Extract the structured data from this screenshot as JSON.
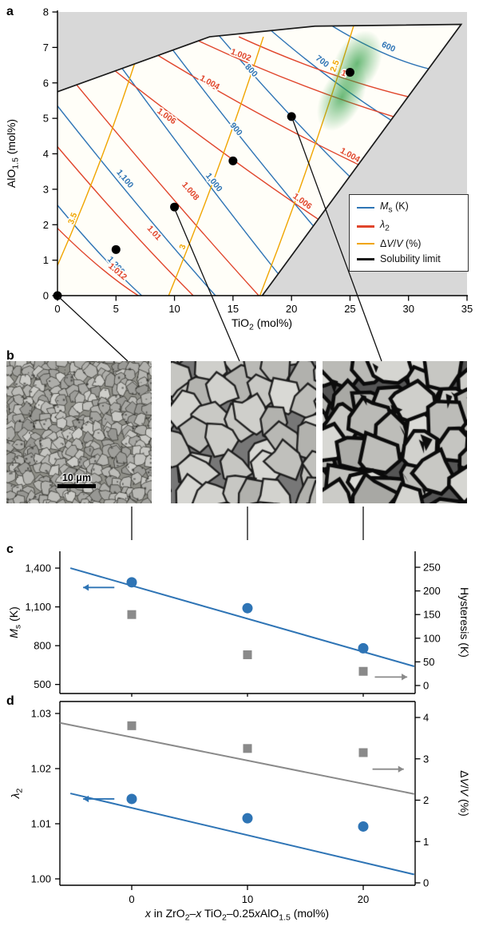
{
  "panels": {
    "a_label": "a",
    "b_label": "b",
    "c_label": "c",
    "d_label": "d"
  },
  "scalebar": {
    "label": "10 μm"
  },
  "colors": {
    "ms": "#2e74b5",
    "lambda2": "#e0452b",
    "dvv": "#f0a500",
    "solubility": "#1a1a1a",
    "gray_out": "#d8d8d8",
    "marker_gray": "#8a8a8a",
    "green": "#2f9e44",
    "region_bg": "#fffef8"
  },
  "sem_images": [
    {
      "name": "fine-grained microstructure"
    },
    {
      "name": "medium-grained microstructure"
    },
    {
      "name": "coarse-grained microstructure"
    }
  ],
  "chart_data": [
    {
      "id": "phase-contour-map",
      "type": "contour",
      "xlabel_runs": [
        {
          "t": "TiO"
        },
        {
          "t": "2",
          "sub": true
        },
        {
          "t": " (mol%)"
        }
      ],
      "ylabel_runs": [
        {
          "t": "AlO"
        },
        {
          "t": "1.5",
          "sub": true
        },
        {
          "t": " (mol%)"
        }
      ],
      "xlim": [
        0,
        35
      ],
      "ylim": [
        0,
        8
      ],
      "x_ticks": [
        0,
        5,
        10,
        15,
        20,
        25,
        30,
        35
      ],
      "y_ticks": [
        0,
        1,
        2,
        3,
        4,
        5,
        6,
        7,
        8
      ],
      "legend": [
        {
          "color": "#2e74b5",
          "runs": [
            {
              "t": "M",
              "italic": true
            },
            {
              "t": "s",
              "sub": true
            },
            {
              "t": " (K)"
            }
          ]
        },
        {
          "color": "#e0452b",
          "runs": [
            {
              "t": "λ",
              "italic": true
            },
            {
              "t": "2",
              "sub": true
            }
          ]
        },
        {
          "color": "#f0a500",
          "runs": [
            {
              "t": "Δ"
            },
            {
              "t": "V",
              "italic": true
            },
            {
              "t": "/"
            },
            {
              "t": "V",
              "italic": true
            },
            {
              "t": " (%)"
            }
          ]
        },
        {
          "color": "#1a1a1a",
          "runs": [
            {
              "t": "Solubility limit"
            }
          ]
        }
      ],
      "series_levels": {
        "ms": [
          "600",
          "700",
          "800",
          "900",
          "1,000",
          "1,100",
          "1,200"
        ],
        "lambda2": [
          "1",
          "1.002",
          "1.004",
          "1.006",
          "1.008",
          "1.01",
          "1.012"
        ],
        "dvv": [
          "2.5",
          "3",
          "3.5"
        ]
      },
      "contour_lines": [
        {
          "s": "ms",
          "v": "1,200",
          "from": [
            0,
            2.55
          ],
          "to": [
            7.2,
            0
          ],
          "labels": [
            [
              4.85,
              0.8,
              47
            ]
          ]
        },
        {
          "s": "ms",
          "v": "1,100",
          "from": [
            0,
            5.35
          ],
          "to": [
            13.5,
            0
          ],
          "labels": [
            [
              5.6,
              3.25,
              50
            ]
          ]
        },
        {
          "s": "ms",
          "v": "1,000",
          "from": [
            4.0,
            7.1
          ],
          "to": [
            18.9,
            0.6
          ],
          "labels": [
            [
              13.2,
              3.15,
              52
            ]
          ]
        },
        {
          "s": "ms",
          "v": "900",
          "from": [
            9.0,
            7.3
          ],
          "to": [
            21.9,
            1.95
          ],
          "labels": [
            [
              15.1,
              4.65,
              51
            ]
          ]
        },
        {
          "s": "ms",
          "v": "800",
          "from": [
            13.5,
            7.45
          ],
          "to": [
            25.0,
            3.35
          ],
          "labels": [
            [
              16.4,
              6.3,
              47
            ]
          ]
        },
        {
          "s": "ms",
          "v": "700",
          "from": [
            18.0,
            7.55
          ],
          "to": [
            28.5,
            4.95
          ],
          "labels": [
            [
              22.5,
              6.55,
              37
            ]
          ]
        },
        {
          "s": "ms",
          "v": "600",
          "from": [
            23.5,
            7.6
          ],
          "to": [
            31.7,
            6.4
          ],
          "labels": [
            [
              28.2,
              6.95,
              24
            ]
          ]
        },
        {
          "s": "lambda2",
          "v": "1.012",
          "from": [
            0,
            1.9
          ],
          "to": [
            6.9,
            0
          ],
          "labels": [
            [
              5.0,
              0.62,
              40
            ]
          ]
        },
        {
          "s": "lambda2",
          "v": "1.01",
          "from": [
            0,
            4.2
          ],
          "to": [
            11.6,
            0
          ],
          "labels": [
            [
              8.1,
              1.72,
              48
            ]
          ]
        },
        {
          "s": "lambda2",
          "v": "1.008",
          "from": [
            0,
            6.6
          ],
          "to": [
            17.2,
            0
          ],
          "labels": [
            [
              11.2,
              2.9,
              49
            ]
          ]
        },
        {
          "s": "lambda2",
          "v": "1.006",
          "from": [
            2.2,
            7.05
          ],
          "to": [
            22.3,
            2.15
          ],
          "labels": [
            [
              9.2,
              5.0,
              36
            ],
            [
              20.8,
              2.6,
              36
            ]
          ]
        },
        {
          "s": "lambda2",
          "v": "1.004",
          "from": [
            6.5,
            7.2
          ],
          "to": [
            25.7,
            3.7
          ],
          "labels": [
            [
              12.9,
              5.95,
              29
            ],
            [
              24.9,
              3.9,
              29
            ]
          ]
        },
        {
          "s": "lambda2",
          "v": "1.002",
          "from": [
            11.0,
            7.35
          ],
          "to": [
            28.7,
            5.05
          ],
          "labels": [
            [
              15.6,
              6.72,
              21
            ]
          ]
        },
        {
          "s": "lambda2",
          "v": "1",
          "from": [
            15.5,
            7.3
          ],
          "to": [
            29.97,
            5.61
          ],
          "labels": [
            [
              24.4,
              6.2,
              19
            ]
          ]
        },
        {
          "s": "dvv",
          "v": "3.5",
          "from": [
            0,
            0.85
          ],
          "to": [
            6.58,
            6.53
          ],
          "labels": [
            [
              1.5,
              2.15,
              -69
            ]
          ]
        },
        {
          "s": "dvv",
          "v": "3",
          "from": [
            9.5,
            0
          ],
          "to": [
            17.6,
            7.3
          ],
          "labels": [
            [
              10.9,
              1.35,
              -69
            ]
          ]
        },
        {
          "s": "dvv",
          "v": "2.5",
          "from": [
            17.3,
            0
          ],
          "to": [
            25.3,
            7.6
          ],
          "labels": [
            [
              23.9,
              6.45,
              -69
            ]
          ]
        }
      ],
      "solubility_polygon": [
        [
          0,
          0
        ],
        [
          0,
          5.75
        ],
        [
          13,
          7.3
        ],
        [
          22,
          7.6
        ],
        [
          34.5,
          7.65
        ],
        [
          17.5,
          0
        ]
      ],
      "solubility_line": [
        [
          0,
          5.75
        ],
        [
          13,
          7.3
        ],
        [
          22,
          7.6
        ],
        [
          34.5,
          7.65
        ],
        [
          17.5,
          0
        ]
      ],
      "composition_dots": [
        [
          0,
          0
        ],
        [
          5,
          1.3
        ],
        [
          10,
          2.5
        ],
        [
          15,
          3.8
        ],
        [
          20,
          5.05
        ],
        [
          25,
          6.3
        ]
      ],
      "highlight_center": [
        25,
        6.1
      ]
    },
    {
      "id": "ms-hysteresis",
      "type": "scatter",
      "x": [
        0,
        10,
        20
      ],
      "series": [
        {
          "name": "Ms (K)",
          "axis": "left",
          "color": "#2e74b5",
          "marker": "circle",
          "values": [
            1290,
            1090,
            780
          ]
        },
        {
          "name": "Hysteresis (K)",
          "axis": "right",
          "color": "#8a8a8a",
          "marker": "square",
          "values": [
            150,
            65,
            30
          ]
        }
      ],
      "trend": {
        "axis": "left",
        "color": "#2e74b5",
        "x": [
          -5.3,
          24.4
        ],
        "y": [
          1400,
          640
        ]
      },
      "left_axis": {
        "label_runs": [
          {
            "t": "M",
            "italic": true
          },
          {
            "t": "s",
            "sub": true
          },
          {
            "t": " (K)"
          }
        ],
        "ticks": [
          "500",
          "800",
          "1,100",
          "1,400"
        ],
        "tick_values": [
          500,
          800,
          1100,
          1400
        ],
        "lim": [
          430,
          1530
        ]
      },
      "right_axis": {
        "label_runs": [
          {
            "t": "Hysteresis (K)"
          }
        ],
        "ticks": [
          "0",
          "50",
          "100",
          "150",
          "200",
          "250"
        ],
        "tick_values": [
          0,
          50,
          100,
          150,
          200,
          250
        ],
        "lim": [
          -17,
          284
        ]
      },
      "arrows": [
        {
          "axis": "left",
          "color": "#2e74b5",
          "y": 1250,
          "x_from": -1.5,
          "x_to": -4.2,
          "dir": "left"
        },
        {
          "axis": "right",
          "color": "#8a8a8a",
          "y": 18,
          "x_from": 21.0,
          "x_to": 23.8,
          "dir": "right"
        }
      ]
    },
    {
      "id": "lambda2-volume-change",
      "type": "scatter",
      "x": [
        0,
        10,
        20
      ],
      "x_tick_labels": [
        "0",
        "10",
        "20"
      ],
      "xlabel_runs": [
        {
          "t": "x",
          "italic": true
        },
        {
          "t": " in ZrO"
        },
        {
          "t": "2",
          "sub": true
        },
        {
          "t": "–"
        },
        {
          "t": "x",
          "italic": true
        },
        {
          "t": " TiO"
        },
        {
          "t": "2",
          "sub": true
        },
        {
          "t": "–0.25"
        },
        {
          "t": "x",
          "italic": true
        },
        {
          "t": "AlO"
        },
        {
          "t": "1.5",
          "sub": true
        },
        {
          "t": " (mol%)"
        }
      ],
      "series": [
        {
          "name": "λ2",
          "axis": "left",
          "color": "#2e74b5",
          "marker": "circle",
          "values": [
            1.0145,
            1.011,
            1.0095
          ]
        },
        {
          "name": "ΔV/V (%)",
          "axis": "right",
          "color": "#8a8a8a",
          "marker": "square",
          "values": [
            3.8,
            3.25,
            3.15
          ]
        }
      ],
      "trends": [
        {
          "axis": "left",
          "color": "#2e74b5",
          "x": [
            -5.3,
            24.4
          ],
          "y": [
            1.0155,
            1.0008
          ]
        },
        {
          "axis": "right",
          "color": "#8a8a8a",
          "x": [
            -6.2,
            24.4
          ],
          "y": [
            3.87,
            2.15
          ]
        }
      ],
      "left_axis": {
        "label_runs": [
          {
            "t": "λ",
            "italic": true
          },
          {
            "t": "2",
            "sub": true
          }
        ],
        "ticks": [
          "1.00",
          "1.01",
          "1.02",
          "1.03"
        ],
        "tick_values": [
          1.0,
          1.01,
          1.02,
          1.03
        ],
        "lim": [
          0.9988,
          1.0322
        ]
      },
      "right_axis": {
        "label_runs": [
          {
            "t": "Δ"
          },
          {
            "t": "V",
            "italic": true
          },
          {
            "t": "/"
          },
          {
            "t": "V",
            "italic": true
          },
          {
            "t": " (%)"
          }
        ],
        "ticks": [
          "0",
          "1",
          "2",
          "3",
          "4"
        ],
        "tick_values": [
          0,
          1,
          2,
          3,
          4
        ],
        "lim": [
          -0.06,
          4.39
        ]
      },
      "arrows": [
        {
          "axis": "left",
          "color": "#2e74b5",
          "y": 1.0145,
          "x_from": -1.5,
          "x_to": -4.2,
          "dir": "left"
        },
        {
          "axis": "right",
          "color": "#8a8a8a",
          "y": 2.75,
          "x_from": 20.8,
          "x_to": 23.5,
          "dir": "right"
        }
      ]
    }
  ]
}
